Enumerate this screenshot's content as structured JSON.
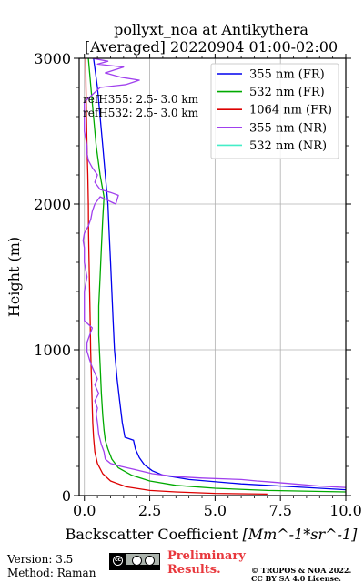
{
  "title_line1": "pollyxt_noa at Antikythera",
  "title_line2": "[Averaged] 20220904 01:00-02:00",
  "annotation_ref355": "refH355:  2.5- 3.0 km",
  "annotation_ref532": "refH532:  2.5- 3.0 km",
  "footer": {
    "version": "Version: 3.5",
    "method": "Method: Raman",
    "preliminary_line1": "Preliminary",
    "preliminary_line2": "Results.",
    "copyright_line1": "© TROPOS & NOA 2022.",
    "copyright_line2": "CC BY SA 4.0 License.",
    "license_badge_text": "cc"
  },
  "chart_data": {
    "type": "line",
    "title": "pollyxt_noa at Antikythera\n[Averaged] 20220904 01:00-02:00",
    "xlabel": "Backscatter Coefficient",
    "xlabel_unit": "[Mm^-1*sr^-1]",
    "ylabel": "Height (m)",
    "xlim": [
      -0.2,
      10
    ],
    "ylim": [
      0,
      3000
    ],
    "xticks": [
      "0.0",
      "2.5",
      "5.0",
      "7.5",
      "10.0"
    ],
    "xtick_values": [
      0,
      2.5,
      5,
      7.5,
      10
    ],
    "yticks": [
      "0",
      "1000",
      "2000",
      "3000"
    ],
    "ytick_values": [
      0,
      1000,
      2000,
      3000
    ],
    "grid": true,
    "legend_position": "top-right",
    "series": [
      {
        "name": "355 nm (FR)",
        "color": "#0000ee",
        "points": [
          [
            10.0,
            40
          ],
          [
            8.0,
            60
          ],
          [
            6.0,
            80
          ],
          [
            4.0,
            110
          ],
          [
            3.0,
            140
          ],
          [
            2.6,
            170
          ],
          [
            2.3,
            210
          ],
          [
            2.1,
            260
          ],
          [
            1.95,
            320
          ],
          [
            1.88,
            380
          ],
          [
            1.55,
            400
          ],
          [
            1.45,
            500
          ],
          [
            1.35,
            650
          ],
          [
            1.25,
            800
          ],
          [
            1.15,
            1000
          ],
          [
            1.1,
            1200
          ],
          [
            1.05,
            1400
          ],
          [
            1.0,
            1600
          ],
          [
            0.95,
            1800
          ],
          [
            0.9,
            2000
          ],
          [
            0.8,
            2200
          ],
          [
            0.7,
            2400
          ],
          [
            0.6,
            2600
          ],
          [
            0.5,
            2800
          ],
          [
            0.35,
            3000
          ]
        ]
      },
      {
        "name": "532 nm (FR)",
        "color": "#00aa00",
        "points": [
          [
            10.0,
            25
          ],
          [
            7.0,
            35
          ],
          [
            5.0,
            50
          ],
          [
            3.5,
            70
          ],
          [
            2.5,
            100
          ],
          [
            1.8,
            140
          ],
          [
            1.3,
            190
          ],
          [
            1.05,
            250
          ],
          [
            0.9,
            320
          ],
          [
            0.8,
            380
          ],
          [
            0.75,
            450
          ],
          [
            0.7,
            550
          ],
          [
            0.65,
            700
          ],
          [
            0.6,
            900
          ],
          [
            0.55,
            1100
          ],
          [
            0.55,
            1300
          ],
          [
            0.6,
            1500
          ],
          [
            0.65,
            1700
          ],
          [
            0.7,
            1900
          ],
          [
            0.75,
            2050
          ],
          [
            0.6,
            2200
          ],
          [
            0.45,
            2400
          ],
          [
            0.35,
            2600
          ],
          [
            0.25,
            2800
          ],
          [
            0.15,
            3000
          ]
        ]
      },
      {
        "name": "1064 nm (FR)",
        "color": "#dd0000",
        "points": [
          [
            7.0,
            10
          ],
          [
            5.0,
            15
          ],
          [
            3.5,
            25
          ],
          [
            2.5,
            35
          ],
          [
            1.6,
            60
          ],
          [
            1.0,
            100
          ],
          [
            0.7,
            150
          ],
          [
            0.5,
            220
          ],
          [
            0.4,
            300
          ],
          [
            0.35,
            400
          ],
          [
            0.32,
            500
          ],
          [
            0.3,
            600
          ],
          [
            0.27,
            800
          ],
          [
            0.24,
            1000
          ],
          [
            0.22,
            1200
          ],
          [
            0.2,
            1400
          ],
          [
            0.18,
            1600
          ],
          [
            0.16,
            1800
          ],
          [
            0.15,
            2000
          ],
          [
            0.13,
            2200
          ],
          [
            0.1,
            2400
          ],
          [
            0.08,
            2600
          ],
          [
            0.06,
            2800
          ],
          [
            0.05,
            3000
          ]
        ]
      },
      {
        "name": "355 nm (NR)",
        "color": "#a040ee",
        "points": [
          [
            10.0,
            55
          ],
          [
            9.0,
            65
          ],
          [
            8.0,
            80
          ],
          [
            7.0,
            95
          ],
          [
            6.6,
            100
          ],
          [
            6.0,
            110
          ],
          [
            4.5,
            120
          ],
          [
            3.5,
            130
          ],
          [
            2.6,
            150
          ],
          [
            1.9,
            180
          ],
          [
            1.4,
            200
          ],
          [
            1.0,
            220
          ],
          [
            0.8,
            250
          ],
          [
            0.75,
            300
          ],
          [
            0.65,
            350
          ],
          [
            0.55,
            420
          ],
          [
            0.5,
            500
          ],
          [
            0.45,
            560
          ],
          [
            0.5,
            600
          ],
          [
            0.4,
            650
          ],
          [
            0.55,
            700
          ],
          [
            0.4,
            760
          ],
          [
            0.5,
            800
          ],
          [
            0.3,
            880
          ],
          [
            0.2,
            930
          ],
          [
            0.1,
            990
          ],
          [
            0.1,
            1050
          ],
          [
            0.2,
            1100
          ],
          [
            0.3,
            1150
          ],
          [
            0.0,
            1200
          ],
          [
            0.0,
            1300
          ],
          [
            0.0,
            1400
          ],
          [
            0.1,
            1500
          ],
          [
            0.0,
            1600
          ],
          [
            0.0,
            1700
          ],
          [
            -0.05,
            1750
          ],
          [
            0.0,
            1800
          ],
          [
            0.15,
            1850
          ],
          [
            0.25,
            1900
          ],
          [
            0.3,
            1950
          ],
          [
            0.4,
            2000
          ],
          [
            0.6,
            2050
          ],
          [
            1.2,
            2000
          ],
          [
            1.3,
            2060
          ],
          [
            1.0,
            2080
          ],
          [
            0.6,
            2100
          ],
          [
            0.4,
            2150
          ],
          [
            0.5,
            2200
          ],
          [
            0.3,
            2250
          ],
          [
            0.15,
            2300
          ],
          [
            0.1,
            2350
          ],
          [
            0.1,
            2400
          ],
          [
            0.0,
            2500
          ],
          [
            0.0,
            2600
          ],
          [
            0.0,
            2700
          ],
          [
            0.3,
            2750
          ],
          [
            0.6,
            2800
          ],
          [
            1.6,
            2820
          ],
          [
            2.1,
            2850
          ],
          [
            1.4,
            2870
          ],
          [
            0.8,
            2900
          ],
          [
            1.5,
            2940
          ],
          [
            0.5,
            2960
          ],
          [
            0.9,
            2980
          ],
          [
            0.3,
            3000
          ]
        ]
      },
      {
        "name": "532 nm (NR)",
        "color": "#44eec8",
        "points": []
      }
    ]
  }
}
